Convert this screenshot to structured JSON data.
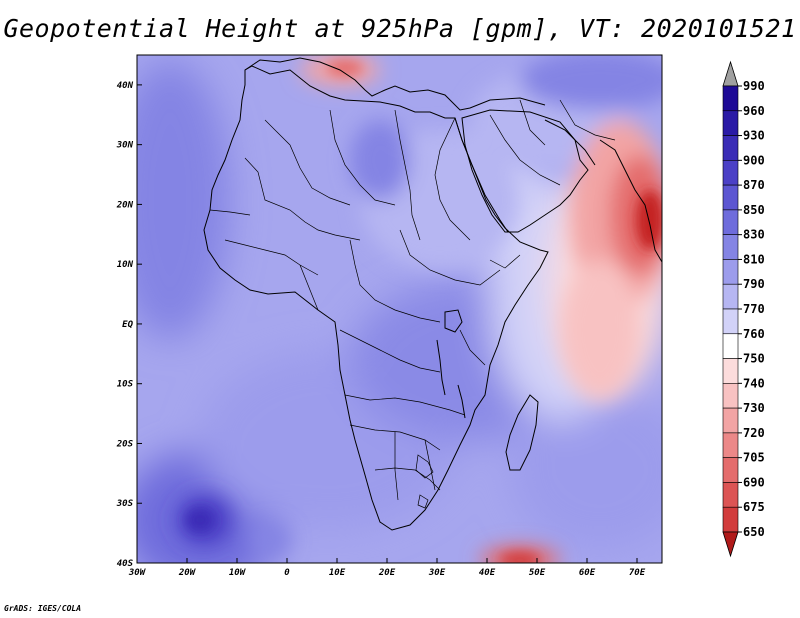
{
  "title": "Geopotential Height at 925hPa [gpm], VT: 2020101521",
  "credit": "GrADS: IGES/COLA",
  "map": {
    "lon_range": [
      -30,
      75
    ],
    "lat_range": [
      -40,
      45
    ],
    "lon_ticks": [
      {
        "lon": -30,
        "label": "30W"
      },
      {
        "lon": -20,
        "label": "20W"
      },
      {
        "lon": -10,
        "label": "10W"
      },
      {
        "lon": 0,
        "label": "0"
      },
      {
        "lon": 10,
        "label": "10E"
      },
      {
        "lon": 20,
        "label": "20E"
      },
      {
        "lon": 30,
        "label": "30E"
      },
      {
        "lon": 40,
        "label": "40E"
      },
      {
        "lon": 50,
        "label": "50E"
      },
      {
        "lon": 60,
        "label": "60E"
      },
      {
        "lon": 70,
        "label": "70E"
      }
    ],
    "lat_ticks": [
      {
        "lat": 40,
        "label": "40N"
      },
      {
        "lat": 30,
        "label": "30N"
      },
      {
        "lat": 20,
        "label": "20N"
      },
      {
        "lat": 10,
        "label": "10N"
      },
      {
        "lat": 0,
        "label": "EQ"
      },
      {
        "lat": -10,
        "label": "10S"
      },
      {
        "lat": -20,
        "label": "20S"
      },
      {
        "lat": -30,
        "label": "30S"
      },
      {
        "lat": -40,
        "label": "40S"
      }
    ],
    "background_color": "#a6a6ee"
  },
  "colorbar": {
    "levels": [
      {
        "value": "990",
        "color": "#1e0a96"
      },
      {
        "value": "960",
        "color": "#2a1aa6"
      },
      {
        "value": "930",
        "color": "#3a2cb6"
      },
      {
        "value": "900",
        "color": "#4b40c6"
      },
      {
        "value": "870",
        "color": "#5c56d2"
      },
      {
        "value": "850",
        "color": "#6e6cdc"
      },
      {
        "value": "830",
        "color": "#8484e4"
      },
      {
        "value": "810",
        "color": "#9c9cec"
      },
      {
        "value": "790",
        "color": "#b6b6f2"
      },
      {
        "value": "770",
        "color": "#d2d2f8"
      },
      {
        "value": "760",
        "color": "#ffffff"
      },
      {
        "value": "750",
        "color": "#fcdcdc"
      },
      {
        "value": "740",
        "color": "#f8c2c2"
      },
      {
        "value": "730",
        "color": "#f2a4a4"
      },
      {
        "value": "720",
        "color": "#ec8888"
      },
      {
        "value": "705",
        "color": "#e46c6c"
      },
      {
        "value": "690",
        "color": "#dc5454"
      },
      {
        "value": "675",
        "color": "#d23c3c"
      },
      {
        "value": "650",
        "color": "#c42424"
      }
    ],
    "top_arrow_color": "#a0a0a0",
    "bottom_arrow_color": "#b01a1a"
  }
}
